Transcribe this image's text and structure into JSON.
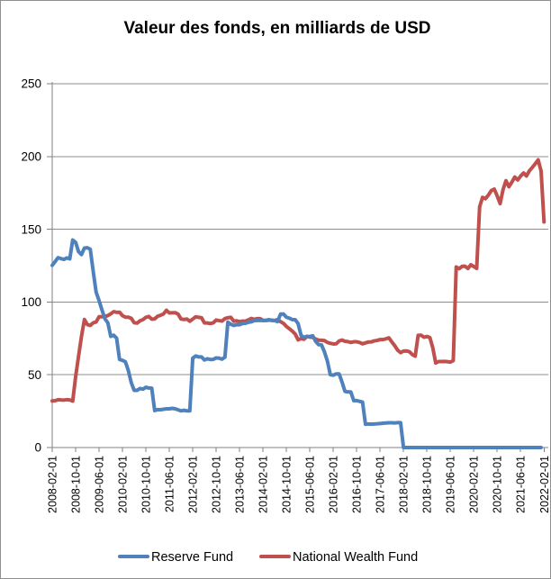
{
  "figure": {
    "background": "#ffffff",
    "border_color": "#909090"
  },
  "colors": {
    "reserve_fund_line": "#4F81BD",
    "national_wealth_fund_line": "#C0504D",
    "gridline": "#8C8C8C",
    "axis": "#808080",
    "text": "#000000"
  },
  "chart_data": {
    "type": "line",
    "title": "Valeur des fonds, en milliards de USD",
    "xlabel": "",
    "ylabel": "",
    "x_start": "2008-02-01",
    "x_step_months": 1,
    "n_points": 169,
    "x_tick_every": 8,
    "x_tick_labels": [
      "2008-02-01",
      "2008-10-01",
      "2009-06-01",
      "2010-02-01",
      "2010-10-01",
      "2011-06-01",
      "2012-02-01",
      "2012-10-01",
      "2013-06-01",
      "2014-02-01",
      "2014-10-01",
      "2015-06-01",
      "2016-02-01",
      "2016-10-01",
      "2017-06-01",
      "2018-02-01",
      "2018-10-01",
      "2019-06-01",
      "2020-02-01",
      "2020-10-01",
      "2021-06-01",
      "2022-02-01"
    ],
    "ylim": [
      0,
      250
    ],
    "y_ticks": [
      0,
      50,
      100,
      150,
      200,
      250
    ],
    "grid": "horizontal-only",
    "legend_position": "bottom-center",
    "series": [
      {
        "name": "Reserve Fund",
        "color": "#4F81BD",
        "values": [
          125.2,
          127.8,
          130.5,
          129.8,
          129.3,
          130.3,
          129.7,
          142.6,
          141.0,
          134.6,
          132.6,
          137.1,
          137.3,
          136.3,
          121.1,
          106.8,
          101.0,
          94.5,
          88.5,
          85.7,
          76.4,
          77.2,
          75.1,
          60.5,
          59.9,
          58.9,
          52.9,
          44.6,
          39.3,
          39.3,
          40.6,
          40.1,
          41.4,
          40.9,
          40.8,
          25.4,
          26.1,
          26.0,
          26.3,
          26.6,
          26.6,
          26.9,
          26.6,
          25.9,
          25.2,
          25.6,
          25.2,
          25.2,
          61.4,
          62.9,
          62.3,
          62.3,
          60.2,
          61.0,
          60.5,
          60.6,
          61.6,
          61.4,
          60.7,
          62.1,
          86.2,
          84.7,
          83.9,
          84.4,
          84.4,
          85.2,
          85.4,
          86.1,
          86.4,
          87.2,
          87.4,
          87.3,
          87.3,
          87.4,
          87.9,
          87.3,
          87.2,
          86.6,
          91.7,
          91.7,
          89.6,
          88.9,
          87.9,
          87.9,
          85.1,
          77.1,
          75.7,
          76.4,
          76.3,
          76.8,
          72.9,
          70.7,
          70.5,
          65.7,
          59.4,
          50.0,
          49.7,
          50.6,
          50.6,
          45.0,
          38.6,
          38.2,
          38.2,
          32.2,
          32.3,
          31.7,
          31.3,
          16.0,
          16.2,
          16.1,
          16.2,
          16.3,
          16.5,
          16.7,
          16.9,
          17.0,
          17.0,
          16.9,
          17.1,
          17.1,
          0,
          0,
          0,
          0,
          0,
          0,
          0,
          0,
          0,
          0,
          0,
          0,
          0,
          0,
          0,
          0,
          0,
          0,
          0,
          0,
          0,
          0,
          0,
          0,
          0,
          0,
          0,
          0,
          0,
          0,
          0,
          0,
          0,
          0,
          0,
          0,
          0,
          0,
          0,
          0,
          0,
          0,
          0,
          0,
          0,
          0,
          0,
          0
        ]
      },
      {
        "name": "National Wealth Fund",
        "color": "#C0504D",
        "values": [
          32.0,
          32.2,
          32.9,
          32.7,
          32.6,
          32.9,
          32.7,
          31.9,
          48.7,
          62.8,
          76.4,
          88.0,
          84.5,
          83.9,
          85.7,
          86.3,
          89.9,
          89.9,
          90.0,
          90.7,
          91.9,
          93.4,
          92.9,
          93.0,
          90.6,
          89.6,
          89.6,
          88.8,
          85.8,
          85.5,
          87.1,
          87.9,
          89.5,
          90.1,
          88.2,
          88.4,
          90.2,
          90.9,
          91.8,
          94.3,
          92.5,
          92.6,
          92.7,
          91.7,
          88.3,
          88.0,
          88.3,
          86.8,
          88.3,
          89.8,
          89.5,
          89.2,
          85.6,
          85.6,
          85.2,
          85.7,
          87.6,
          87.2,
          86.9,
          88.6,
          89.2,
          89.5,
          86.8,
          87.1,
          86.5,
          86.9,
          86.9,
          87.7,
          88.7,
          88.1,
          88.6,
          88.6,
          87.4,
          87.3,
          87.5,
          87.6,
          87.3,
          87.9,
          86.5,
          85.3,
          83.2,
          81.7,
          80.0,
          78.0,
          74.0,
          74.9,
          74.4,
          76.3,
          75.9,
          75.7,
          74.6,
          73.8,
          73.7,
          73.5,
          72.2,
          71.7,
          71.2,
          71.3,
          73.2,
          73.9,
          73.0,
          72.8,
          72.2,
          72.7,
          72.7,
          72.2,
          71.3,
          71.9,
          72.5,
          72.6,
          73.3,
          73.6,
          74.2,
          74.2,
          74.7,
          75.4,
          72.6,
          70.0,
          66.9,
          65.2,
          66.3,
          66.4,
          65.9,
          63.9,
          62.8,
          77.1,
          77.2,
          75.8,
          76.3,
          75.6,
          68.6,
          58.1,
          59.1,
          59.1,
          59.2,
          59.0,
          58.7,
          59.7,
          124.1,
          122.9,
          124.5,
          124.6,
          123.0,
          125.6,
          124.4,
          123.1,
          165.4,
          171.9,
          171.0,
          173.5,
          176.6,
          177.6,
          172.9,
          167.6,
          177.2,
          183.4,
          179.2,
          182.3,
          185.9,
          183.9,
          186.5,
          188.7,
          186.6,
          190.2,
          192.5,
          195.0,
          197.7,
          190.0,
          155.0
        ]
      }
    ]
  }
}
